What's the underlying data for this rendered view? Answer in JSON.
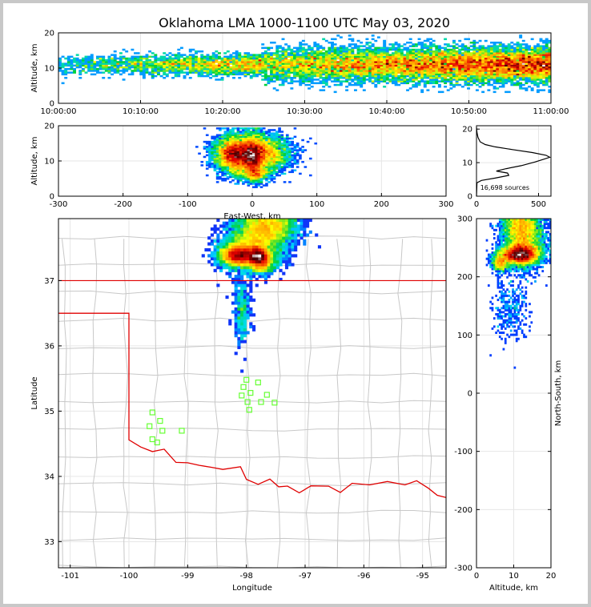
{
  "chart_data": {
    "title": "Oklahoma LMA 1000-1100 UTC May 03, 2020",
    "sources_label": "16,698 sources",
    "colors": {
      "state_border": "#e00000",
      "county_lines": "#c8c8c8",
      "stations": "#66ff33",
      "axes": "#000000"
    },
    "panels": [
      {
        "id": "time-altitude",
        "type": "heatmap",
        "ylabel": "Altitude, km",
        "ylim": [
          0,
          20
        ],
        "yticks": [
          0,
          10,
          20
        ],
        "xticks": [
          "10:00:00",
          "10:10:00",
          "10:20:00",
          "10:30:00",
          "10:40:00",
          "10:50:00",
          "11:00:00"
        ],
        "xlim_minutes": [
          0,
          60
        ]
      },
      {
        "id": "ew-altitude",
        "type": "heatmap",
        "xlabel": "East-West, km",
        "ylabel": "Altitude, km",
        "xlim": [
          -300,
          300
        ],
        "xticks": [
          -300,
          -200,
          -100,
          0,
          100,
          200,
          300
        ],
        "ylim": [
          0,
          20
        ],
        "yticks": [
          0,
          10,
          20
        ]
      },
      {
        "id": "altitude-histogram",
        "type": "line",
        "xlim": [
          0,
          600
        ],
        "xticks": [
          0,
          500
        ],
        "ylim": [
          0,
          21
        ],
        "yticks": [
          0,
          10,
          20
        ],
        "profile": [
          {
            "count": 0,
            "alt": 0
          },
          {
            "count": 4,
            "alt": 4
          },
          {
            "count": 40,
            "alt": 4.7
          },
          {
            "count": 150,
            "alt": 5.4
          },
          {
            "count": 260,
            "alt": 6.2
          },
          {
            "count": 250,
            "alt": 6.9
          },
          {
            "count": 160,
            "alt": 7.5
          },
          {
            "count": 240,
            "alt": 8.2
          },
          {
            "count": 360,
            "alt": 9.1
          },
          {
            "count": 470,
            "alt": 10.2
          },
          {
            "count": 540,
            "alt": 11.0
          },
          {
            "count": 590,
            "alt": 11.6
          },
          {
            "count": 560,
            "alt": 12.2
          },
          {
            "count": 450,
            "alt": 13.0
          },
          {
            "count": 290,
            "alt": 13.9
          },
          {
            "count": 150,
            "alt": 14.7
          },
          {
            "count": 70,
            "alt": 15.4
          },
          {
            "count": 30,
            "alt": 16.2
          },
          {
            "count": 12,
            "alt": 17.5
          },
          {
            "count": 4,
            "alt": 19
          },
          {
            "count": 0,
            "alt": 20.5
          }
        ]
      },
      {
        "id": "plan-view",
        "type": "scatter",
        "xlabel": "Longitude",
        "ylabel": "Latitude",
        "xlim": [
          -101.2,
          -94.6
        ],
        "xticks": [
          -101,
          -100,
          -99,
          -98,
          -97,
          -96,
          -95
        ],
        "ylim": [
          32.6,
          37.95
        ],
        "yticks": [
          33,
          34,
          35,
          36,
          37
        ],
        "stations": [
          {
            "lon": -99.6,
            "lat": 34.98
          },
          {
            "lon": -99.47,
            "lat": 34.85
          },
          {
            "lon": -99.65,
            "lat": 34.77
          },
          {
            "lon": -99.43,
            "lat": 34.7
          },
          {
            "lon": -99.1,
            "lat": 34.7
          },
          {
            "lon": -99.6,
            "lat": 34.57
          },
          {
            "lon": -99.52,
            "lat": 34.52
          },
          {
            "lon": -98.0,
            "lat": 35.48
          },
          {
            "lon": -97.8,
            "lat": 35.44
          },
          {
            "lon": -98.05,
            "lat": 35.37
          },
          {
            "lon": -97.93,
            "lat": 35.28
          },
          {
            "lon": -98.08,
            "lat": 35.24
          },
          {
            "lon": -97.65,
            "lat": 35.25
          },
          {
            "lon": -97.98,
            "lat": 35.14
          },
          {
            "lon": -97.75,
            "lat": 35.14
          },
          {
            "lon": -97.52,
            "lat": 35.13
          },
          {
            "lon": -97.95,
            "lat": 35.02
          }
        ]
      },
      {
        "id": "altitude-ns",
        "type": "heatmap",
        "xlabel": "Altitude, km",
        "ylabel": "North-South, km",
        "xlim": [
          0,
          20
        ],
        "xticks": [
          0,
          10,
          20
        ],
        "ylim": [
          -300,
          300
        ],
        "yticks": [
          -300,
          -200,
          -100,
          0,
          100,
          200,
          300
        ]
      }
    ]
  }
}
